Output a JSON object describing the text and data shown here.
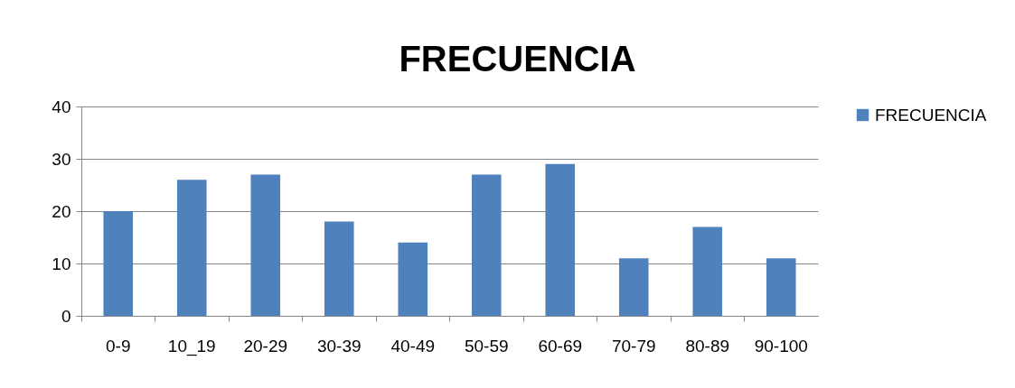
{
  "chart_data": {
    "type": "bar",
    "title": "FRECUENCIA",
    "categories": [
      "0-9",
      "10_19",
      "20-29",
      "30-39",
      "40-49",
      "50-59",
      "60-69",
      "70-79",
      "80-89",
      "90-100"
    ],
    "series": [
      {
        "name": "FRECUENCIA",
        "color": "#4f81bd",
        "values": [
          20,
          26,
          27,
          18,
          14,
          27,
          29,
          11,
          17,
          11
        ]
      }
    ],
    "ylim": [
      0,
      40
    ],
    "yticks": [
      0,
      10,
      20,
      30,
      40
    ],
    "grid": "y",
    "legend": "right"
  }
}
